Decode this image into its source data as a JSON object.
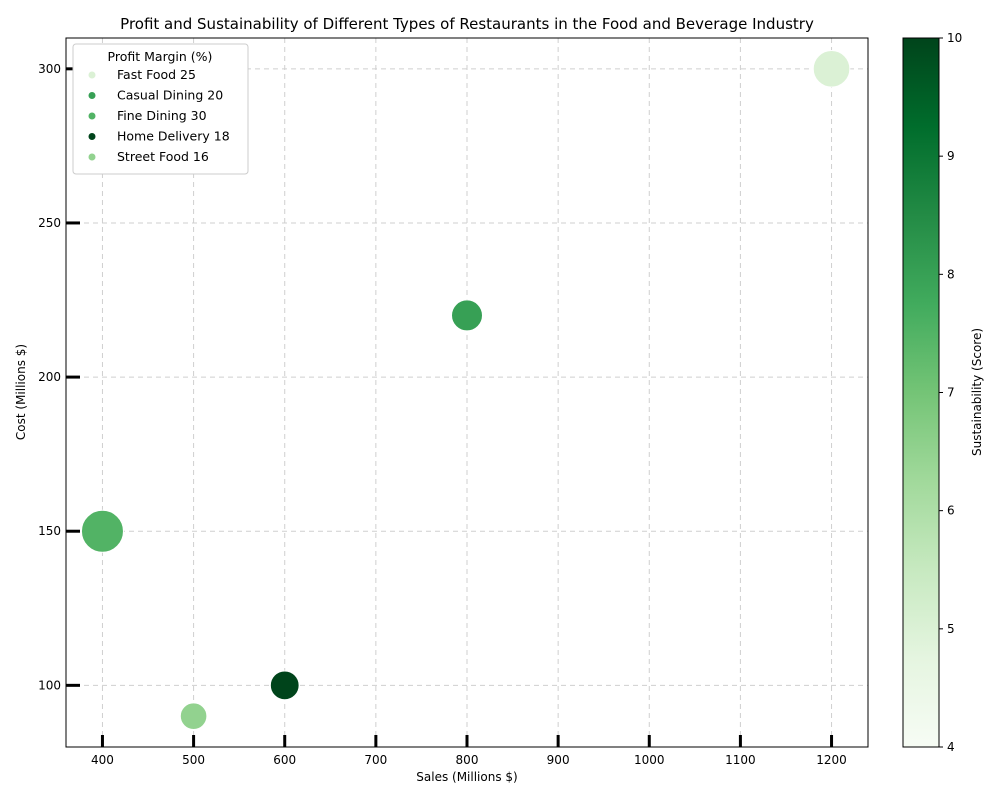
{
  "chart_data": {
    "type": "scatter",
    "title": "Profit and Sustainability of Different Types of Restaurants in the Food and Beverage Industry",
    "xlabel": "Sales (Millions $)",
    "ylabel": "Cost (Millions $)",
    "xlim": [
      360,
      1240
    ],
    "ylim": [
      80,
      310
    ],
    "xticks": [
      400,
      500,
      600,
      700,
      800,
      900,
      1000,
      1100,
      1200
    ],
    "yticks": [
      100,
      150,
      200,
      250,
      300
    ],
    "grid": true,
    "legend": {
      "title": "Profit Margin (%)",
      "placement": "top-left",
      "entries": [
        "Fast Food 25",
        "Casual Dining 20",
        "Fine Dining 30",
        "Home Delivery 18",
        "Street Food 16"
      ]
    },
    "colorbar": {
      "label": "Sustainability (Score)",
      "min": 4,
      "max": 10,
      "ticks": [
        4,
        5,
        6,
        7,
        8,
        9,
        10
      ],
      "colormap": "Greens"
    },
    "points": [
      {
        "name": "Fast Food",
        "x": 1200,
        "y": 300,
        "profit_margin": 25,
        "sustainability": 5
      },
      {
        "name": "Casual Dining",
        "x": 800,
        "y": 220,
        "profit_margin": 20,
        "sustainability": 8
      },
      {
        "name": "Fine Dining",
        "x": 400,
        "y": 150,
        "profit_margin": 30,
        "sustainability": 7.5
      },
      {
        "name": "Home Delivery",
        "x": 600,
        "y": 100,
        "profit_margin": 18,
        "sustainability": 10
      },
      {
        "name": "Street Food",
        "x": 500,
        "y": 90,
        "profit_margin": 16,
        "sustainability": 6.5
      }
    ]
  }
}
